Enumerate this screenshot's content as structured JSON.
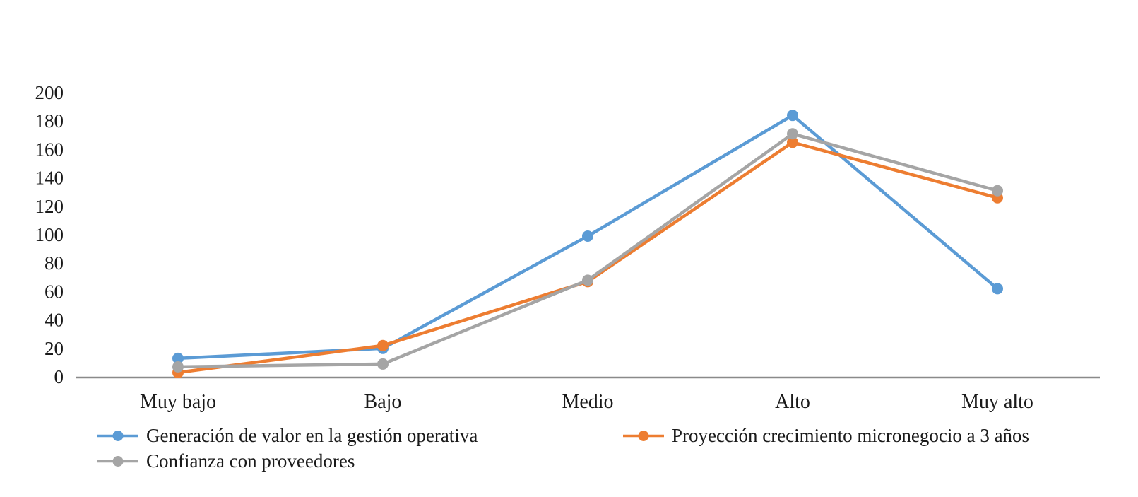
{
  "chart_data": {
    "type": "line",
    "title": "",
    "xlabel": "",
    "ylabel": "",
    "categories": [
      "Muy bajo",
      "Bajo",
      "Medio",
      "Alto",
      "Muy alto"
    ],
    "series": [
      {
        "name": "Generación de valor en la gestión operativa",
        "color": "#5B9BD5",
        "values": [
          13,
          20,
          99,
          184,
          62
        ]
      },
      {
        "name": "Proyección crecimiento micronegocio a 3 años",
        "color": "#ED7D31",
        "values": [
          3,
          22,
          67,
          165,
          126
        ]
      },
      {
        "name": "Confianza con proveedores",
        "color": "#A5A5A5",
        "values": [
          7,
          9,
          68,
          171,
          131
        ]
      }
    ],
    "ylim": [
      0,
      200
    ],
    "ytick_step": 20,
    "ytick_labels": [
      "0",
      "20",
      "40",
      "60",
      "80",
      "100",
      "120",
      "140",
      "160",
      "180",
      "200"
    ],
    "grid": false,
    "legend_position": "bottom",
    "marker_style": "circle",
    "axis_color": "#8a8a8a",
    "text_color": "#1a1a1a",
    "background_color": "#ffffff"
  }
}
